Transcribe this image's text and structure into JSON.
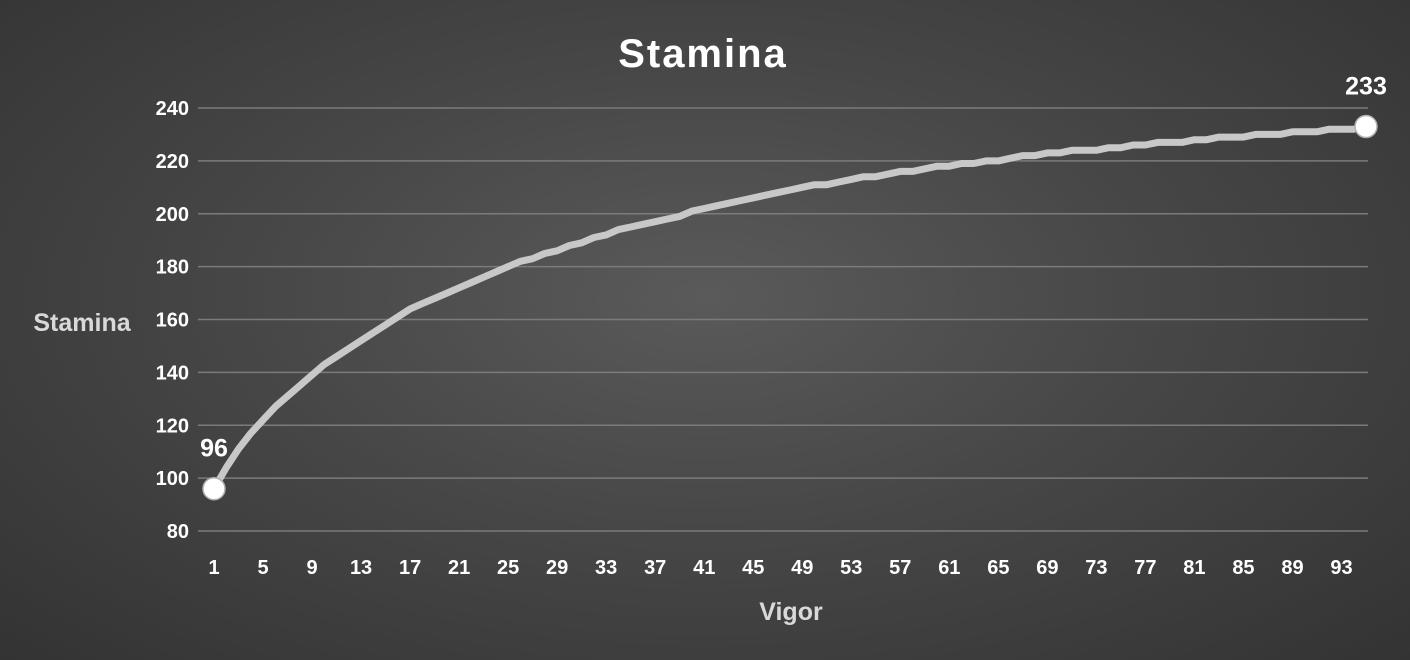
{
  "chart_data": {
    "type": "line",
    "title": "Stamina",
    "xlabel": "Vigor",
    "ylabel": "Stamina",
    "ylim": [
      80,
      240
    ],
    "y_ticks": [
      80,
      100,
      120,
      140,
      160,
      180,
      200,
      220,
      240
    ],
    "x_range": [
      1,
      95
    ],
    "x_tick_labels": [
      "1",
      "5",
      "9",
      "13",
      "17",
      "21",
      "25",
      "29",
      "33",
      "37",
      "41",
      "45",
      "49",
      "53",
      "57",
      "61",
      "65",
      "69",
      "73",
      "77",
      "81",
      "85",
      "89",
      "93"
    ],
    "grid": true,
    "legend": "none",
    "colors": {
      "line": "#c8c8c8",
      "marker": "#ffffff"
    },
    "series": [
      {
        "x": [
          1,
          2,
          3,
          4,
          5,
          6,
          7,
          8,
          9,
          10,
          11,
          12,
          13,
          14,
          15,
          16,
          17,
          18,
          19,
          20,
          21,
          22,
          23,
          24,
          25,
          26,
          27,
          28,
          29,
          30,
          31,
          32,
          33,
          34,
          35,
          36,
          37,
          38,
          39,
          40,
          41,
          42,
          43,
          44,
          45,
          46,
          47,
          48,
          49,
          50,
          51,
          52,
          53,
          54,
          55,
          56,
          57,
          58,
          59,
          60,
          61,
          62,
          63,
          64,
          65,
          66,
          67,
          68,
          69,
          70,
          71,
          72,
          73,
          74,
          75,
          76,
          77,
          78,
          79,
          80,
          81,
          82,
          83,
          84,
          85,
          86,
          87,
          88,
          89,
          90,
          91,
          92,
          93,
          94,
          95
        ],
        "values": [
          96,
          104,
          111,
          117,
          122,
          127,
          131,
          135,
          139,
          143,
          146,
          149,
          152,
          155,
          158,
          161,
          164,
          166,
          168,
          170,
          172,
          174,
          176,
          178,
          180,
          182,
          183,
          185,
          186,
          188,
          189,
          191,
          192,
          194,
          195,
          196,
          197,
          198,
          199,
          201,
          202,
          203,
          204,
          205,
          206,
          207,
          208,
          209,
          210,
          211,
          211,
          212,
          213,
          214,
          214,
          215,
          216,
          216,
          217,
          218,
          218,
          219,
          219,
          220,
          220,
          221,
          222,
          222,
          223,
          223,
          224,
          224,
          224,
          225,
          225,
          226,
          226,
          227,
          227,
          227,
          228,
          228,
          229,
          229,
          229,
          230,
          230,
          230,
          231,
          231,
          231,
          232,
          232,
          232,
          233
        ]
      }
    ],
    "data_labels": [
      {
        "x": 1,
        "y": 96,
        "text": "96"
      },
      {
        "x": 95,
        "y": 233,
        "text": "233"
      }
    ]
  }
}
